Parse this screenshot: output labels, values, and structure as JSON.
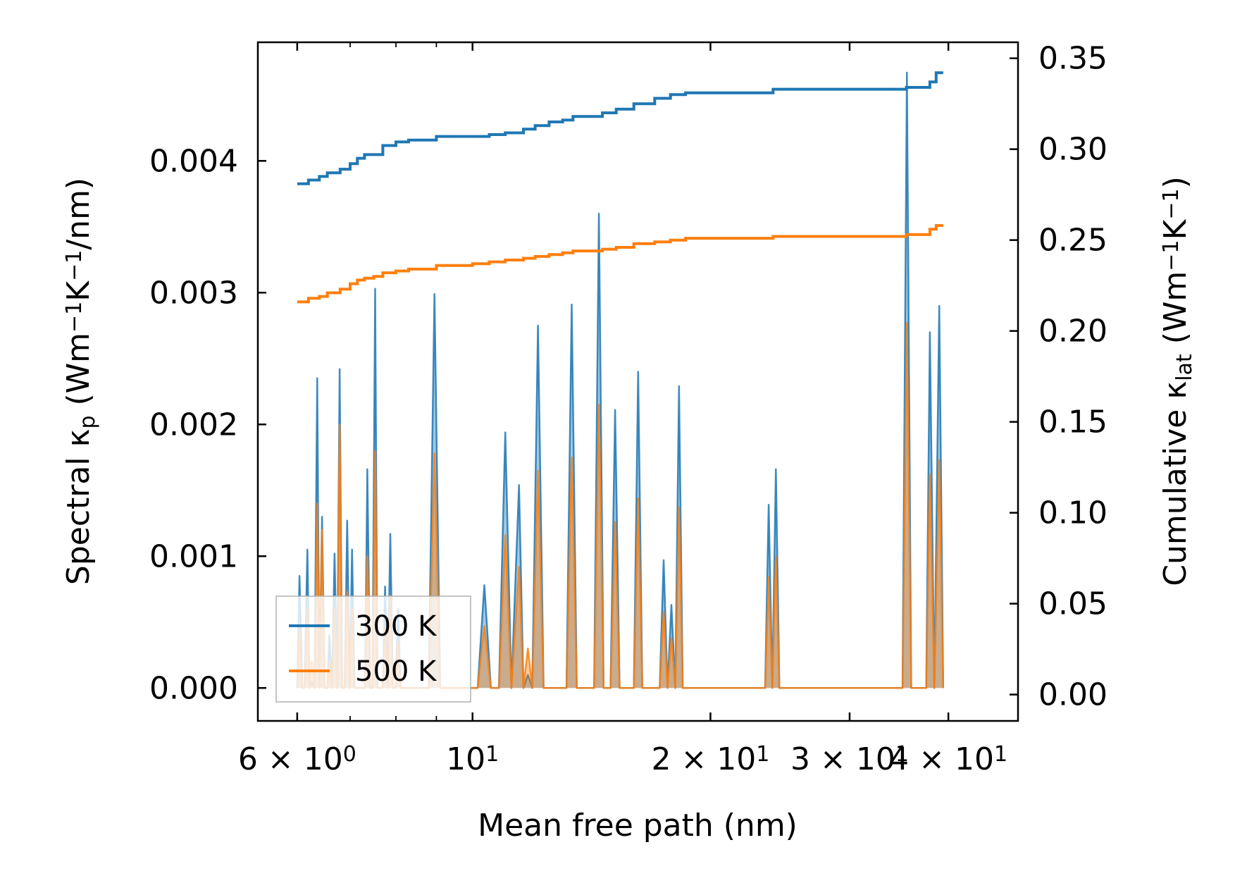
{
  "chart_data": {
    "type": "line",
    "xscale": "log",
    "xlim": [
      5.35,
      49.0
    ],
    "ylim_left": [
      -0.00025,
      0.0049
    ],
    "ylim_right": [
      -0.0145,
      0.3588
    ],
    "xlabel": "Mean free path (nm)",
    "ylabel_left": {
      "main": "Spectral κ",
      "sub": "p",
      "unit_pre": " (Wm",
      "sup1": "−1",
      "mid": "K",
      "sup2": "−1",
      "unit_post": "/nm)"
    },
    "ylabel_right": {
      "main": "Cumulative κ",
      "sub": "lat",
      "unit_pre": " (Wm",
      "sup1": "−1",
      "mid": "K",
      "sup2": "−1",
      "unit_post": ")"
    },
    "x_ticks": [
      {
        "value": 6,
        "base": "6 × 10",
        "exp": "0"
      },
      {
        "value": 10,
        "base": "10",
        "exp": "1"
      },
      {
        "value": 20,
        "base": "2 × 10",
        "exp": "1"
      },
      {
        "value": 30,
        "base": "3 × 10",
        "exp": "1"
      },
      {
        "value": 40,
        "base": "4 × 10",
        "exp": "1"
      }
    ],
    "x_minor_ticks": [
      7,
      8,
      9
    ],
    "y_left_ticks": [
      {
        "value": 0.0,
        "label": "0.000"
      },
      {
        "value": 0.001,
        "label": "0.001"
      },
      {
        "value": 0.002,
        "label": "0.002"
      },
      {
        "value": 0.003,
        "label": "0.003"
      },
      {
        "value": 0.004,
        "label": "0.004"
      }
    ],
    "y_right_ticks": [
      {
        "value": 0.0,
        "label": "0.00"
      },
      {
        "value": 0.05,
        "label": "0.05"
      },
      {
        "value": 0.1,
        "label": "0.10"
      },
      {
        "value": 0.15,
        "label": "0.15"
      },
      {
        "value": 0.2,
        "label": "0.20"
      },
      {
        "value": 0.25,
        "label": "0.25"
      },
      {
        "value": 0.3,
        "label": "0.30"
      },
      {
        "value": 0.35,
        "label": "0.35"
      }
    ],
    "legend": {
      "position": "lower-left",
      "entries": [
        {
          "label": "300 K",
          "color": "#1f77b4"
        },
        {
          "label": "500 K",
          "color": "#ff7f0e"
        }
      ]
    },
    "spectral_series": [
      {
        "name": "300 K",
        "color": "#1f77b4",
        "x": [
          6.0,
          6.04,
          6.09,
          6.13,
          6.18,
          6.22,
          6.26,
          6.31,
          6.36,
          6.4,
          6.45,
          6.5,
          6.55,
          6.59,
          6.64,
          6.69,
          6.74,
          6.79,
          6.84,
          6.89,
          6.94,
          6.99,
          7.04,
          7.09,
          7.15,
          7.2,
          7.25,
          7.31,
          7.36,
          7.42,
          7.47,
          7.53,
          7.58,
          7.64,
          7.7,
          7.75,
          7.81,
          7.87,
          7.93,
          7.99,
          8.05,
          8.11,
          8.17,
          8.23,
          8.29,
          8.36,
          8.42,
          8.48,
          8.55,
          8.61,
          8.8,
          8.95,
          9.1,
          10.15,
          10.35,
          10.55,
          10.8,
          11.0,
          11.2,
          11.45,
          11.6,
          11.75,
          11.9,
          12.1,
          12.3,
          12.5,
          13.15,
          13.35,
          13.55,
          14.25,
          14.45,
          14.65,
          14.95,
          15.15,
          15.35,
          16.0,
          16.2,
          16.4,
          17.25,
          17.45,
          17.65,
          17.85,
          18.05,
          18.25,
          18.45,
          18.65,
          23.45,
          23.7,
          23.95,
          24.2,
          24.45,
          24.7,
          35.0,
          35.45,
          35.9,
          37.5,
          37.9,
          38.4,
          38.95,
          39.4
        ],
        "y": [
          0.0,
          0.00085,
          0.0,
          0.0,
          0.00105,
          0.0,
          5e-05,
          0.0,
          0.00235,
          0.0,
          0.0013,
          0.0,
          0.0,
          0.0004,
          0.0,
          0.00102,
          0.0,
          0.00242,
          0.0,
          0.0,
          0.00127,
          0.0,
          0.00105,
          0.0,
          0.0,
          0.0,
          0.0,
          0.0,
          0.00166,
          0.0,
          0.0,
          0.00303,
          0.0,
          0.0,
          0.0,
          0.00077,
          0.0,
          0.00117,
          0.0,
          0.0,
          0.0006,
          0.0,
          0.0,
          0.0,
          0.0,
          0.0,
          0.0,
          0.0,
          0.0,
          0.0,
          0.0,
          0.00299,
          0.0,
          0.0,
          0.00078,
          0.0,
          0.0,
          0.00194,
          0.0,
          0.00154,
          0.0,
          0.0001,
          0.0,
          0.00275,
          0.0,
          0.0,
          0.0,
          0.00291,
          0.0,
          0.0,
          0.0036,
          0.0,
          0.0,
          0.00211,
          0.0,
          0.0,
          0.0024,
          0.0,
          0.0,
          0.00097,
          0.0,
          0.00063,
          0.0,
          0.00229,
          0.0,
          0.0,
          0.0,
          0.00139,
          0.0,
          0.00166,
          0.0,
          0.0,
          0.0,
          0.00467,
          0.0,
          0.0,
          0.0027,
          0.0,
          0.0029,
          0.0
        ]
      },
      {
        "name": "500 K",
        "color": "#ff7f0e",
        "x": [
          6.0,
          6.04,
          6.09,
          6.13,
          6.18,
          6.22,
          6.26,
          6.31,
          6.36,
          6.4,
          6.45,
          6.5,
          6.55,
          6.59,
          6.64,
          6.69,
          6.74,
          6.79,
          6.84,
          6.89,
          6.94,
          6.99,
          7.04,
          7.09,
          7.15,
          7.2,
          7.25,
          7.31,
          7.36,
          7.42,
          7.47,
          7.53,
          7.58,
          7.64,
          7.7,
          7.75,
          7.81,
          7.87,
          7.93,
          7.99,
          8.05,
          8.11,
          8.17,
          8.23,
          8.29,
          8.36,
          8.42,
          8.48,
          8.55,
          8.61,
          8.8,
          8.95,
          9.1,
          10.15,
          10.35,
          10.55,
          10.8,
          11.0,
          11.2,
          11.45,
          11.6,
          11.75,
          11.9,
          12.1,
          12.3,
          12.5,
          13.15,
          13.35,
          13.55,
          14.25,
          14.45,
          14.65,
          14.95,
          15.15,
          15.35,
          16.0,
          16.2,
          16.4,
          17.25,
          17.45,
          17.65,
          17.85,
          18.05,
          18.25,
          18.45,
          18.65,
          23.45,
          23.7,
          23.95,
          24.2,
          24.45,
          24.7,
          35.0,
          35.45,
          35.9,
          37.5,
          37.9,
          38.4,
          38.95,
          39.4
        ],
        "y": [
          0.0,
          0.00045,
          0.0,
          0.0,
          0.0006,
          0.0,
          0.0002,
          0.0,
          0.0014,
          0.0,
          0.0012,
          0.0,
          0.0,
          0.0002,
          0.0,
          0.0006,
          0.0,
          0.002,
          0.0,
          0.0,
          0.00073,
          0.0,
          0.0006,
          0.0,
          0.0,
          0.0,
          0.0,
          0.0,
          0.001,
          0.0,
          0.0,
          0.0018,
          0.0,
          0.0,
          0.0,
          0.00045,
          0.0,
          0.0007,
          0.0,
          0.0,
          0.00035,
          0.0,
          0.0,
          0.0,
          0.0,
          0.0,
          0.0,
          0.0,
          0.0,
          0.0,
          0.0,
          0.00178,
          0.0,
          0.0,
          0.00047,
          0.0,
          0.0,
          0.00116,
          0.0,
          0.00092,
          0.0,
          0.0003,
          0.0,
          0.00165,
          0.0,
          0.0,
          0.0,
          0.00175,
          0.0,
          0.0,
          0.00215,
          0.0,
          0.0,
          0.00126,
          0.0,
          0.0,
          0.00144,
          0.0,
          0.0,
          0.00058,
          0.0,
          0.00038,
          0.0,
          0.00137,
          0.0,
          0.0,
          0.0,
          0.00084,
          0.0,
          0.001,
          0.0,
          0.0,
          0.0,
          0.00277,
          0.0,
          0.0,
          0.00162,
          0.0,
          0.00173,
          0.0
        ]
      }
    ],
    "cumulative_series": [
      {
        "name": "300 K",
        "color": "#1f77b4",
        "x": [
          6.0,
          6.2,
          6.4,
          6.55,
          6.8,
          7.0,
          7.15,
          7.3,
          7.5,
          7.7,
          8.0,
          8.3,
          9.0,
          10.0,
          10.5,
          11.0,
          11.6,
          12.0,
          12.5,
          13.0,
          13.4,
          14.0,
          14.6,
          15.2,
          16.0,
          17.0,
          17.8,
          18.6,
          20.0,
          22.0,
          24.0,
          26.0,
          30.0,
          34.0,
          35.4,
          36.5,
          37.9,
          38.6,
          39.4
        ],
        "y": [
          0.281,
          0.283,
          0.285,
          0.287,
          0.289,
          0.292,
          0.295,
          0.297,
          0.297,
          0.302,
          0.304,
          0.305,
          0.307,
          0.307,
          0.308,
          0.309,
          0.311,
          0.313,
          0.315,
          0.316,
          0.318,
          0.318,
          0.32,
          0.322,
          0.325,
          0.328,
          0.33,
          0.331,
          0.331,
          0.331,
          0.333,
          0.333,
          0.333,
          0.333,
          0.334,
          0.334,
          0.337,
          0.342,
          0.342
        ]
      },
      {
        "name": "500 K",
        "color": "#ff7f0e",
        "x": [
          6.0,
          6.2,
          6.4,
          6.55,
          6.8,
          7.0,
          7.15,
          7.3,
          7.5,
          7.7,
          8.0,
          8.3,
          9.0,
          10.0,
          10.5,
          11.0,
          11.6,
          12.0,
          12.5,
          13.0,
          13.4,
          14.0,
          14.6,
          15.2,
          16.0,
          17.0,
          17.8,
          18.6,
          20.0,
          22.0,
          24.0,
          26.0,
          30.0,
          34.0,
          35.4,
          36.5,
          37.9,
          38.6,
          39.4
        ],
        "y": [
          0.216,
          0.218,
          0.219,
          0.221,
          0.223,
          0.226,
          0.228,
          0.229,
          0.23,
          0.232,
          0.233,
          0.234,
          0.236,
          0.237,
          0.238,
          0.239,
          0.24,
          0.241,
          0.242,
          0.243,
          0.244,
          0.244,
          0.245,
          0.246,
          0.248,
          0.249,
          0.25,
          0.251,
          0.251,
          0.251,
          0.252,
          0.252,
          0.252,
          0.252,
          0.253,
          0.253,
          0.256,
          0.258,
          0.258
        ]
      }
    ]
  }
}
